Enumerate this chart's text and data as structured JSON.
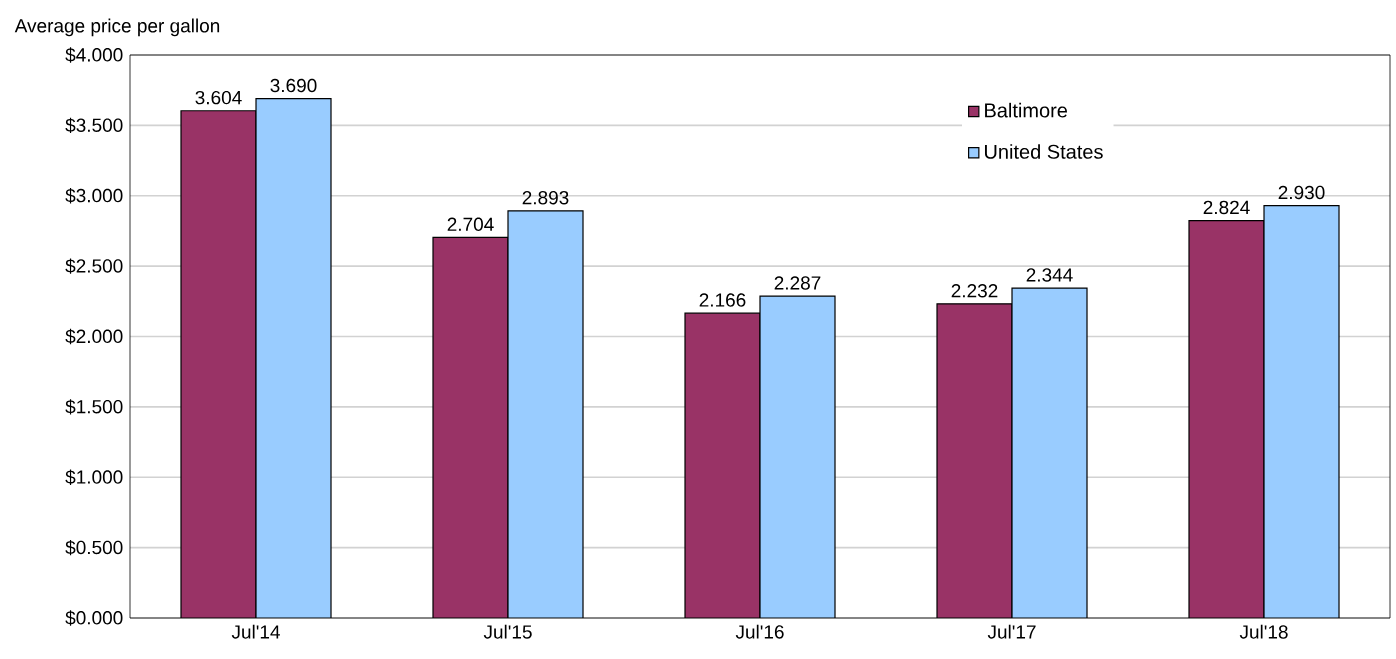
{
  "chart_data": {
    "type": "bar",
    "ylabel": "Average price per gallon",
    "categories": [
      "Jul'14",
      "Jul'15",
      "Jul'16",
      "Jul'17",
      "Jul'18"
    ],
    "series": [
      {
        "name": "Baltimore",
        "color": "#993366",
        "values": [
          3.604,
          2.704,
          2.166,
          2.232,
          2.824
        ],
        "value_labels": [
          "3.604",
          "2.704",
          "2.166",
          "2.232",
          "2.824"
        ]
      },
      {
        "name": "United States",
        "color": "#99ccff",
        "values": [
          3.69,
          2.893,
          2.287,
          2.344,
          2.93
        ],
        "value_labels": [
          "3.690",
          "2.893",
          "2.287",
          "2.344",
          "2.930"
        ]
      }
    ],
    "ylim": [
      0,
      4
    ],
    "yticks": [
      {
        "value": 0,
        "label": "$0.000"
      },
      {
        "value": 0.5,
        "label": "$0.500"
      },
      {
        "value": 1,
        "label": "$1.000"
      },
      {
        "value": 1.5,
        "label": "$1.500"
      },
      {
        "value": 2,
        "label": "$2.000"
      },
      {
        "value": 2.5,
        "label": "$2.500"
      },
      {
        "value": 3,
        "label": "$3.000"
      },
      {
        "value": 3.5,
        "label": "$3.500"
      },
      {
        "value": 4,
        "label": "$4.000"
      }
    ],
    "grid": "y",
    "legend": "top right"
  }
}
